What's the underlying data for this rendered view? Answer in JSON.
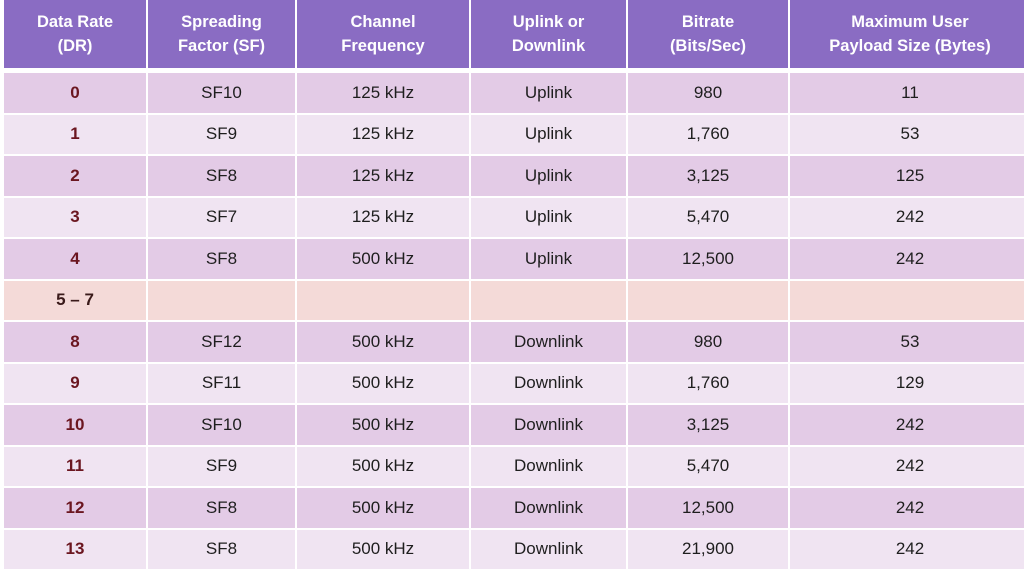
{
  "table": {
    "headers": [
      [
        "Data Rate",
        "(DR)"
      ],
      [
        "Spreading",
        "Factor (SF)"
      ],
      [
        "Channel",
        "Frequency"
      ],
      [
        "Uplink or",
        "Downlink"
      ],
      [
        "Bitrate",
        "(Bits/Sec)"
      ],
      [
        "Maximum User",
        "Payload Size (Bytes)"
      ]
    ],
    "rows": [
      [
        "0",
        "SF10",
        "125 kHz",
        "Uplink",
        "980",
        "11"
      ],
      [
        "1",
        "SF9",
        "125 kHz",
        "Uplink",
        "1,760",
        "53"
      ],
      [
        "2",
        "SF8",
        "125 kHz",
        "Uplink",
        "3,125",
        "125"
      ],
      [
        "3",
        "SF7",
        "125 kHz",
        "Uplink",
        "5,470",
        "242"
      ],
      [
        "4",
        "SF8",
        "500 kHz",
        "Uplink",
        "12,500",
        "242"
      ],
      [
        "5 – 7",
        "",
        "",
        "",
        "",
        ""
      ],
      [
        "8",
        "SF12",
        "500 kHz",
        "Downlink",
        "980",
        "53"
      ],
      [
        "9",
        "SF11",
        "500 kHz",
        "Downlink",
        "1,760",
        "129"
      ],
      [
        "10",
        "SF10",
        "500 kHz",
        "Downlink",
        "3,125",
        "242"
      ],
      [
        "11",
        "SF9",
        "500 kHz",
        "Downlink",
        "5,470",
        "242"
      ],
      [
        "12",
        "SF8",
        "500 kHz",
        "Downlink",
        "12,500",
        "242"
      ],
      [
        "13",
        "SF8",
        "500 kHz",
        "Downlink",
        "21,900",
        "242"
      ]
    ]
  },
  "colors": {
    "header_bg": "#8a6cc3",
    "row_dark": "#e3cbe6",
    "row_light": "#f0e4f2",
    "row_reserved": "#f4dad8",
    "data_rate_text": "#6b1620"
  }
}
